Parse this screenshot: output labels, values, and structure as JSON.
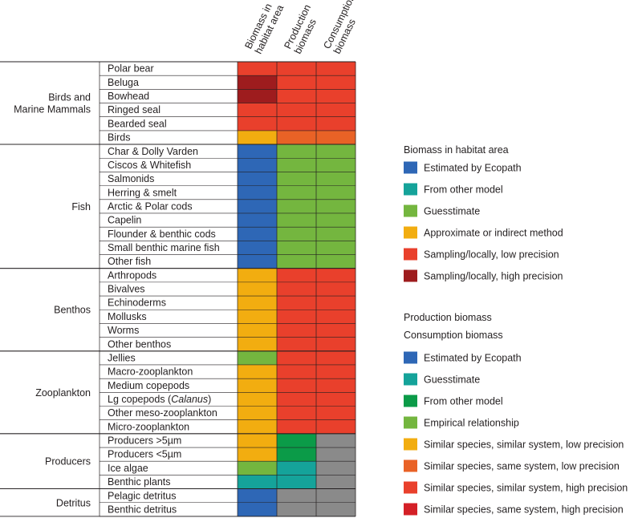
{
  "chart_data": {
    "type": "heatmap",
    "columns": [
      {
        "line1": "Biomass in",
        "line2": "habitat area"
      },
      {
        "line1": "Production",
        "line2": "biomass"
      },
      {
        "line1": "Consumption",
        "line2": "biomass"
      }
    ],
    "groups": [
      {
        "name": [
          "Birds and",
          "Marine Mammals"
        ],
        "rows": [
          {
            "label": "Polar bear",
            "cells": [
              "sl",
              "sh",
              "sh"
            ]
          },
          {
            "label": "Beluga",
            "cells": [
              "shp",
              "sh",
              "sh"
            ]
          },
          {
            "label": "Bowhead",
            "cells": [
              "shp",
              "sh",
              "sh"
            ]
          },
          {
            "label": "Ringed seal",
            "cells": [
              "sl",
              "sh",
              "sh"
            ]
          },
          {
            "label": "Bearded seal",
            "cells": [
              "sl",
              "sh",
              "sh"
            ]
          },
          {
            "label": "Birds",
            "cells": [
              "ap",
              "ss",
              "ss"
            ]
          }
        ]
      },
      {
        "name": [
          "Fish"
        ],
        "rows": [
          {
            "label": "Char & Dolly Varden",
            "cells": [
              "ee",
              "er",
              "er"
            ]
          },
          {
            "label": "Ciscos & Whitefish",
            "cells": [
              "ee",
              "er",
              "er"
            ]
          },
          {
            "label": "Salmonids",
            "cells": [
              "ee",
              "er",
              "er"
            ]
          },
          {
            "label": "Herring & smelt",
            "cells": [
              "ee",
              "er",
              "er"
            ]
          },
          {
            "label": "Arctic & Polar cods",
            "cells": [
              "ee",
              "er",
              "er"
            ]
          },
          {
            "label": "Capelin",
            "cells": [
              "ee",
              "er",
              "er"
            ]
          },
          {
            "label": "Flounder & benthic cods",
            "cells": [
              "ee",
              "er",
              "er"
            ]
          },
          {
            "label": "Small benthic marine fish",
            "cells": [
              "ee",
              "er",
              "er"
            ]
          },
          {
            "label": "Other fish",
            "cells": [
              "ee",
              "er",
              "er"
            ]
          }
        ]
      },
      {
        "name": [
          "Benthos"
        ],
        "rows": [
          {
            "label": "Arthropods",
            "cells": [
              "ap",
              "sl",
              "sl"
            ]
          },
          {
            "label": "Bivalves",
            "cells": [
              "ap",
              "sl",
              "sl"
            ]
          },
          {
            "label": "Echinoderms",
            "cells": [
              "ap",
              "sl",
              "sl"
            ]
          },
          {
            "label": "Mollusks",
            "cells": [
              "ap",
              "sl",
              "sl"
            ]
          },
          {
            "label": "Worms",
            "cells": [
              "ap",
              "sl",
              "sl"
            ]
          },
          {
            "label": "Other benthos",
            "cells": [
              "ap",
              "sl",
              "sl"
            ]
          }
        ]
      },
      {
        "name": [
          "Zooplankton"
        ],
        "rows": [
          {
            "label": "Jellies",
            "cells": [
              "gs",
              "sl",
              "sl"
            ]
          },
          {
            "label": "Macro-zooplankton",
            "cells": [
              "ap",
              "sl",
              "sl"
            ]
          },
          {
            "label": "Medium copepods",
            "cells": [
              "ap",
              "sl",
              "sl"
            ]
          },
          {
            "label_parts": [
              "Lg copepods (",
              "Calanus",
              ")"
            ],
            "cells": [
              "ap",
              "sl",
              "sl"
            ]
          },
          {
            "label": "Other meso-zooplankton",
            "cells": [
              "ap",
              "sl",
              "sl"
            ]
          },
          {
            "label": "Micro-zooplankton",
            "cells": [
              "ap",
              "sl",
              "sl"
            ]
          }
        ]
      },
      {
        "name": [
          "Producers"
        ],
        "rows": [
          {
            "label": "Producers >5µm",
            "cells": [
              "ap",
              "om",
              "na"
            ]
          },
          {
            "label": "Producers <5µm",
            "cells": [
              "ap",
              "om",
              "na"
            ]
          },
          {
            "label": "Ice algae",
            "cells": [
              "gs",
              "gu",
              "na"
            ]
          },
          {
            "label": "Benthic plants",
            "cells": [
              "gu",
              "gu",
              "na"
            ]
          }
        ]
      },
      {
        "name": [
          "Detritus"
        ],
        "rows": [
          {
            "label": "Pelagic detritus",
            "cells": [
              "ee",
              "na",
              "na"
            ]
          },
          {
            "label": "Benthic detritus",
            "cells": [
              "ee",
              "na",
              "na"
            ]
          }
        ]
      }
    ],
    "colors": {
      "ee": "#2e67b6",
      "om": "#0b9b48",
      "gu": "#15a39a",
      "gs": "#74b63f",
      "er": "#74b63f",
      "ap": "#f2ad10",
      "sl": "#e9402c",
      "sh": "#e9402c",
      "ss": "#e96226",
      "shp": "#9e1c1e",
      "na": "#8a8a8a"
    },
    "legend": {
      "habitat_title": "Biomass in habitat area",
      "habitat_items": [
        {
          "key": "ee",
          "label": "Estimated by Ecopath"
        },
        {
          "key": "gu",
          "label": "From other model"
        },
        {
          "key": "gs",
          "label": "Guesstimate"
        },
        {
          "key": "ap",
          "label": "Approximate or indirect method"
        },
        {
          "key": "sl",
          "label": "Sampling/locally, low precision"
        },
        {
          "key": "shp",
          "label": "Sampling/locally, high precision"
        }
      ],
      "prod_title_1": "Production biomass",
      "prod_title_2": "Consumption biomass",
      "prod_items": [
        {
          "key": "ee",
          "label": "Estimated by Ecopath"
        },
        {
          "key": "gu",
          "label": "Guesstimate"
        },
        {
          "key": "om",
          "label": "From other model"
        },
        {
          "key": "er",
          "label": "Empirical relationship"
        },
        {
          "key": "ap",
          "label": "Similar species, similar system, low precision"
        },
        {
          "key": "ss",
          "label": "Similar species, same system, low precision"
        },
        {
          "key": "sl",
          "label": "Similar species, similar system, high precision"
        },
        {
          "key": "sd",
          "color": "#d42027",
          "label": "Similar species, same system, high precision"
        }
      ]
    }
  }
}
